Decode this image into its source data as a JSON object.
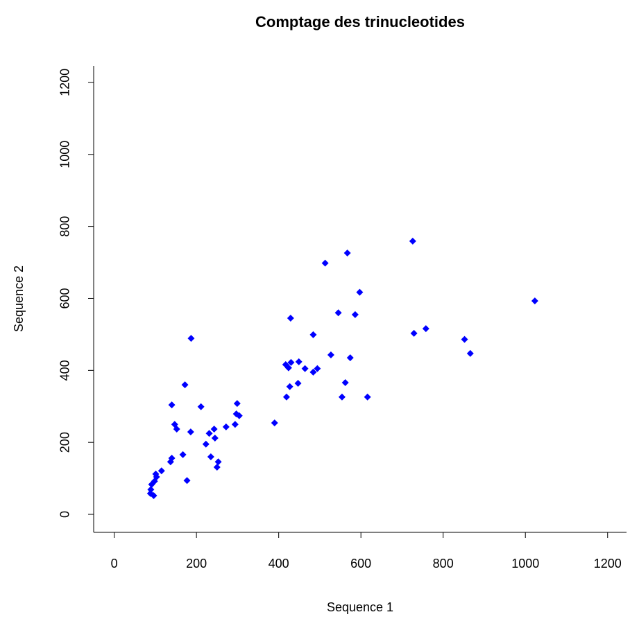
{
  "chart_data": {
    "type": "scatter",
    "title": "Comptage des trinucleotides",
    "xlabel": "Sequence 1",
    "ylabel": "Sequence 2",
    "color": "#0000ff",
    "xlim": [
      -50,
      1246
    ],
    "ylim": [
      -50,
      1246
    ],
    "xticks": [
      0,
      200,
      400,
      600,
      800,
      1000,
      1200
    ],
    "yticks": [
      0,
      200,
      400,
      600,
      800,
      1000,
      1200
    ],
    "x": [
      726,
      567,
      513,
      597,
      1023,
      545,
      586,
      429,
      187,
      484,
      729,
      758,
      852,
      866,
      527,
      574,
      417,
      424,
      430,
      449,
      464,
      484,
      494,
      172,
      427,
      447,
      562,
      554,
      616,
      419,
      140,
      211,
      299,
      297,
      304,
      390,
      294,
      147,
      152,
      243,
      272,
      186,
      231,
      245,
      223,
      140,
      137,
      167,
      235,
      253,
      250,
      177,
      115,
      101,
      103,
      98,
      91,
      89,
      88,
      96
    ],
    "y": [
      759,
      726,
      698,
      617,
      593,
      560,
      555,
      545,
      489,
      499,
      503,
      516,
      486,
      447,
      443,
      435,
      416,
      407,
      422,
      424,
      405,
      395,
      405,
      360,
      355,
      364,
      366,
      326,
      326,
      326,
      304,
      299,
      308,
      279,
      274,
      254,
      250,
      250,
      237,
      237,
      243,
      229,
      225,
      212,
      195,
      156,
      146,
      166,
      160,
      146,
      131,
      94,
      121,
      112,
      104,
      92,
      83,
      69,
      58,
      52
    ]
  }
}
